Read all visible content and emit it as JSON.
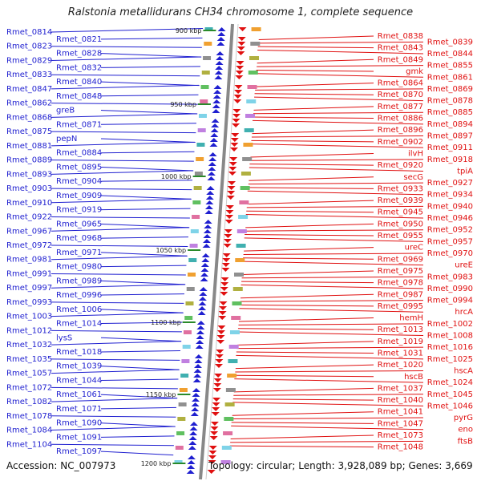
{
  "title": "Ralstonia metallidurans CH34 chromosome 1, complete sequence",
  "footer": {
    "accession": "Accession: NC_007973",
    "summary": "Topology: circular; Length: 3,928,089 bp; Genes: 3,669"
  },
  "colors": {
    "forward_strand": "#1f1fd0",
    "reverse_strand": "#e01010",
    "backbone": "#888888",
    "tick": "#2a8a2a"
  },
  "ticks": [
    "900 kbp",
    "950 kbp",
    "1000 kbp",
    "1050 kbp",
    "1100 kbp",
    "1150 kbp",
    "1200 kbp"
  ],
  "left_labels": [
    "Rmet_0814",
    "Rmet_0821",
    "Rmet_0823",
    "Rmet_0828",
    "Rmet_0829",
    "Rmet_0832",
    "Rmet_0833",
    "Rmet_0840",
    "Rmet_0847",
    "Rmet_0848",
    "Rmet_0862",
    "greB",
    "Rmet_0868",
    "Rmet_0871",
    "Rmet_0875",
    "pepN",
    "Rmet_0881",
    "Rmet_0884",
    "Rmet_0889",
    "Rmet_0895",
    "Rmet_0893",
    "Rmet_0904",
    "Rmet_0903",
    "Rmet_0909",
    "Rmet_0910",
    "Rmet_0919",
    "Rmet_0922",
    "Rmet_0965",
    "Rmet_0967",
    "Rmet_0968",
    "Rmet_0972",
    "Rmet_0971",
    "Rmet_0981",
    "Rmet_0980",
    "Rmet_0991",
    "Rmet_0989",
    "Rmet_0997",
    "Rmet_0996",
    "Rmet_0993",
    "Rmet_1006",
    "Rmet_1003",
    "Rmet_1014",
    "Rmet_1012",
    "lysS",
    "Rmet_1032",
    "Rmet_1018",
    "Rmet_1035",
    "Rmet_1039",
    "Rmet_1057",
    "Rmet_1044",
    "Rmet_1072",
    "Rmet_1061",
    "Rmet_1082",
    "Rmet_1071",
    "Rmet_1078",
    "Rmet_1090",
    "Rmet_1084",
    "Rmet_1091",
    "Rmet_1104",
    "Rmet_1097"
  ],
  "right_labels": [
    "Rmet_0838",
    "Rmet_0839",
    "Rmet_0843",
    "Rmet_0844",
    "Rmet_0849",
    "Rmet_0855",
    "gmk",
    "Rmet_0861",
    "Rmet_0864",
    "Rmet_0869",
    "Rmet_0870",
    "Rmet_0878",
    "Rmet_0877",
    "Rmet_0885",
    "Rmet_0886",
    "Rmet_0894",
    "Rmet_0896",
    "Rmet_0897",
    "Rmet_0902",
    "Rmet_0911",
    "ilvH",
    "Rmet_0918",
    "Rmet_0920",
    "tpiA",
    "secG",
    "Rmet_0927",
    "Rmet_0933",
    "Rmet_0934",
    "Rmet_0939",
    "Rmet_0940",
    "Rmet_0945",
    "Rmet_0946",
    "Rmet_0950",
    "Rmet_0952",
    "Rmet_0955",
    "Rmet_0957",
    "ureC",
    "Rmet_0970",
    "Rmet_0969",
    "ureE",
    "Rmet_0975",
    "Rmet_0983",
    "Rmet_0978",
    "Rmet_0990",
    "Rmet_0987",
    "Rmet_0994",
    "Rmet_0995",
    "hrcA",
    "hemH",
    "Rmet_1002",
    "Rmet_1013",
    "Rmet_1008",
    "Rmet_1019",
    "Rmet_1016",
    "Rmet_1031",
    "Rmet_1025",
    "Rmet_1020",
    "hscA",
    "hscB",
    "Rmet_1024",
    "Rmet_1037",
    "Rmet_1045",
    "Rmet_1040",
    "Rmet_1046",
    "Rmet_1041",
    "pyrG",
    "Rmet_1047",
    "eno",
    "Rmet_1073",
    "ftsB",
    "Rmet_1048"
  ]
}
